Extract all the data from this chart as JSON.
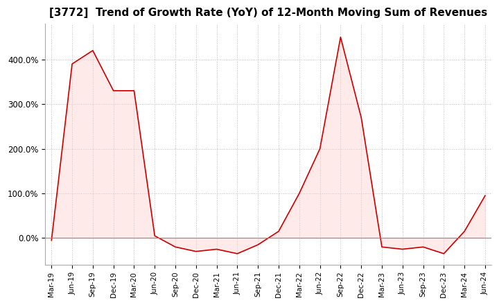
{
  "title": "[3772]  Trend of Growth Rate (YoY) of 12-Month Moving Sum of Revenues",
  "title_fontsize": 11,
  "line_color": "#cc0000",
  "fill_color": "#ffcccc",
  "background_color": "#ffffff",
  "grid_color": "#bbbbbb",
  "x_labels": [
    "Mar-19",
    "Jun-19",
    "Sep-19",
    "Dec-19",
    "Mar-20",
    "Jun-20",
    "Sep-20",
    "Dec-20",
    "Mar-21",
    "Jun-21",
    "Sep-21",
    "Dec-21",
    "Mar-22",
    "Jun-22",
    "Sep-22",
    "Dec-22",
    "Mar-23",
    "Jun-23",
    "Sep-23",
    "Dec-23",
    "Mar-24",
    "Jun-24"
  ],
  "y_values": [
    -5.0,
    390.0,
    420.0,
    330.0,
    330.0,
    5.0,
    -20.0,
    -30.0,
    -25.0,
    -35.0,
    -15.0,
    15.0,
    100.0,
    200.0,
    450.0,
    270.0,
    -20.0,
    -25.0,
    -20.0,
    -35.0,
    15.0,
    95.0
  ],
  "ylim_low": -60,
  "ylim_high": 480,
  "yticks": [
    0,
    100,
    200,
    300,
    400
  ]
}
